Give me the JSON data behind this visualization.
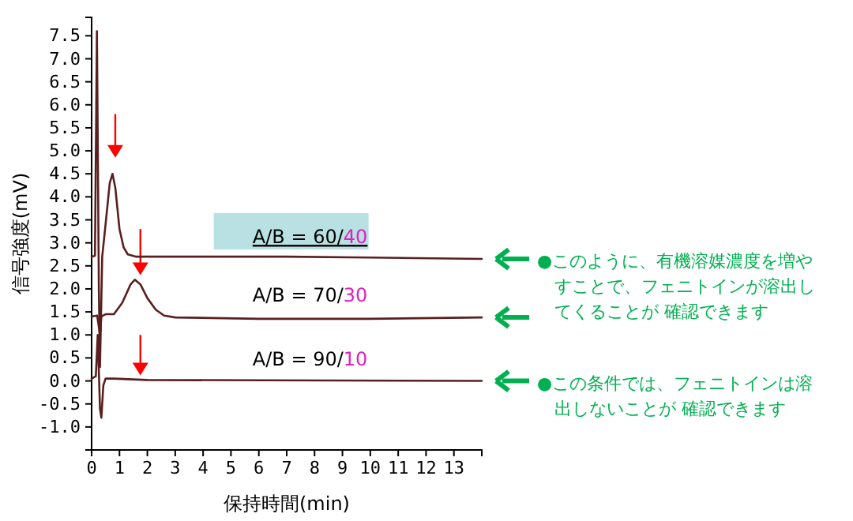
{
  "chart_data": {
    "type": "line",
    "xlabel": "保持時間(min)",
    "ylabel": "信号強度(mV)",
    "xlim": [
      0,
      14
    ],
    "ylim": [
      -1.5,
      7.9
    ],
    "xticks": [
      0,
      1,
      2,
      3,
      4,
      5,
      6,
      7,
      8,
      9,
      10,
      11,
      12,
      13
    ],
    "yticks": [
      {
        "value": -1,
        "label": "-1.0"
      },
      {
        "value": -0.5,
        "label": "-0.5"
      },
      {
        "value": 0,
        "label": "0.0"
      },
      {
        "value": 0.5,
        "label": "0.5"
      },
      {
        "value": 1,
        "label": "1.0"
      },
      {
        "value": 1.5,
        "label": "1.5"
      },
      {
        "value": 2,
        "label": "2.0"
      },
      {
        "value": 2.5,
        "label": "2.5"
      },
      {
        "value": 3,
        "label": "3.0"
      },
      {
        "value": 3.5,
        "label": "3.5"
      },
      {
        "value": 4,
        "label": "4.0"
      },
      {
        "value": 4.5,
        "label": "4.5"
      },
      {
        "value": 5,
        "label": "5.0"
      },
      {
        "value": 5.5,
        "label": "5.5"
      },
      {
        "value": 6,
        "label": "6.0"
      },
      {
        "value": 6.5,
        "label": "6.5"
      },
      {
        "value": 7,
        "label": "7.0"
      },
      {
        "value": 7.5,
        "label": "7.5"
      }
    ],
    "series": [
      {
        "name": "A/B = 60/40",
        "color": "#5a1f1f",
        "x": [
          0,
          0.12,
          0.19,
          0.26,
          0.3,
          0.38,
          0.5,
          0.65,
          0.75,
          0.85,
          1.0,
          1.15,
          1.3,
          1.6,
          3,
          7,
          10,
          14
        ],
        "values": [
          2.7,
          2.72,
          7.6,
          2.0,
          0.3,
          2.7,
          3.4,
          4.3,
          4.5,
          4.2,
          3.3,
          2.9,
          2.75,
          2.7,
          2.7,
          2.7,
          2.68,
          2.65
        ]
      },
      {
        "name": "A/B = 70/30",
        "color": "#5a1f1f",
        "x": [
          0,
          0.2,
          0.3,
          0.35,
          0.5,
          0.8,
          1.1,
          1.4,
          1.55,
          1.75,
          2.0,
          2.3,
          2.6,
          3,
          6,
          10,
          14
        ],
        "values": [
          1.4,
          1.42,
          1.0,
          1.4,
          1.45,
          1.45,
          1.7,
          2.1,
          2.2,
          2.1,
          1.8,
          1.55,
          1.42,
          1.38,
          1.35,
          1.35,
          1.38
        ]
      },
      {
        "name": "A/B = 90/10",
        "color": "#5a1f1f",
        "x": [
          0,
          0.15,
          0.22,
          0.3,
          0.35,
          0.42,
          0.5,
          0.8,
          2,
          14
        ],
        "values": [
          0.05,
          0.1,
          1.0,
          -0.6,
          -0.8,
          -0.1,
          0.05,
          0.05,
          0.02,
          0
        ]
      }
    ],
    "annotations": [
      "●このように、有機溶媒濃度を増やすことで、フェニトインが溶出してくることが 確認できます",
      "●この条件では、フェニトインは溶出しないことが 確認できます"
    ]
  }
}
